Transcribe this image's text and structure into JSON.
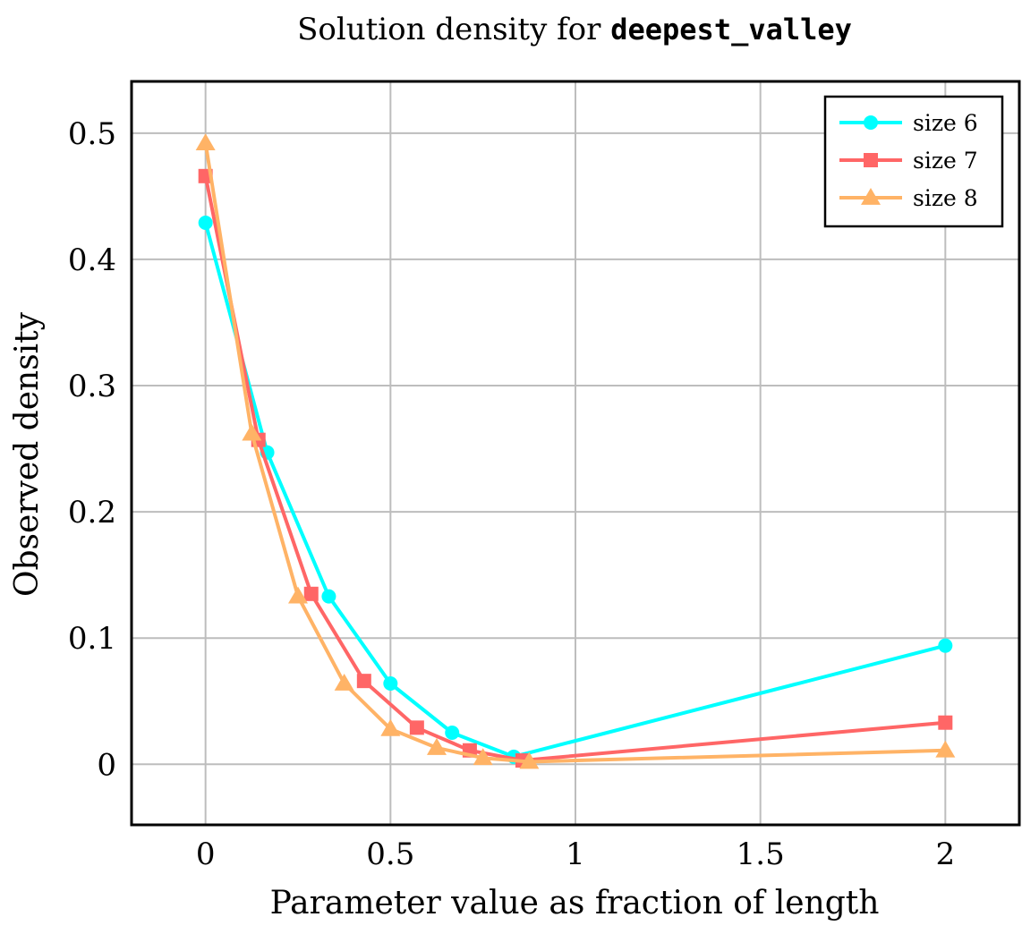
{
  "chart_data": {
    "type": "line",
    "title": "Solution density for ",
    "title_code": "deepest_valley",
    "xlabel": "Parameter value as fraction of length",
    "ylabel": "Observed density",
    "xlim": [
      -0.2,
      2.2
    ],
    "ylim": [
      -0.048,
      0.541
    ],
    "xticks": [
      0,
      0.5,
      1,
      1.5,
      2
    ],
    "xtick_labels": [
      "0",
      "0.5",
      "1",
      "1.5",
      "2"
    ],
    "yticks": [
      0,
      0.1,
      0.2,
      0.3,
      0.4,
      0.5
    ],
    "ytick_labels": [
      "0",
      "0.1",
      "0.2",
      "0.3",
      "0.4",
      "0.5"
    ],
    "grid": true,
    "legend_position": "top-right",
    "series": [
      {
        "name": "size 6",
        "color": "#00ffff",
        "marker": "circle",
        "x": [
          0,
          0.1667,
          0.3333,
          0.5,
          0.6667,
          0.8333,
          2
        ],
        "y": [
          0.429,
          0.247,
          0.133,
          0.064,
          0.025,
          0.006,
          0.094
        ]
      },
      {
        "name": "size 7",
        "color": "#ff6666",
        "marker": "square",
        "x": [
          0,
          0.1429,
          0.2857,
          0.4286,
          0.5714,
          0.7143,
          0.8571,
          2
        ],
        "y": [
          0.466,
          0.257,
          0.135,
          0.066,
          0.029,
          0.011,
          0.003,
          0.033
        ]
      },
      {
        "name": "size 8",
        "color": "#ffb366",
        "marker": "triangle",
        "x": [
          0,
          0.125,
          0.25,
          0.375,
          0.5,
          0.625,
          0.75,
          0.875,
          2
        ],
        "y": [
          0.492,
          0.262,
          0.133,
          0.064,
          0.028,
          0.013,
          0.005,
          0.002,
          0.011
        ]
      }
    ]
  }
}
